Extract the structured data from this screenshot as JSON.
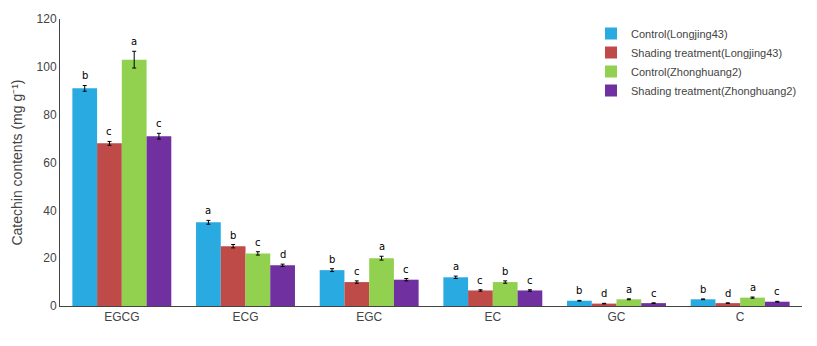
{
  "chart_data": {
    "type": "bar",
    "ylabel": "Catechin contents (mg g⁻¹)",
    "categories": [
      "EGCG",
      "ECG",
      "EGC",
      "EC",
      "GC",
      "C"
    ],
    "series": [
      {
        "name": "Control(Longjing43)",
        "color": "#29ABE2",
        "values": [
          91,
          35,
          15,
          12,
          2.2,
          2.8
        ],
        "errors": [
          1.2,
          0.8,
          0.6,
          0.5,
          0.15,
          0.15
        ],
        "letters": [
          "b",
          "a",
          "b",
          "a",
          "b",
          "b"
        ]
      },
      {
        "name": "Shading treatment(Longjing43)",
        "color": "#BE4B48",
        "values": [
          68,
          25,
          10,
          6.5,
          1.0,
          1.2
        ],
        "errors": [
          0.8,
          0.7,
          0.5,
          0.3,
          0.12,
          0.12
        ],
        "letters": [
          "c",
          "b",
          "c",
          "c",
          "d",
          "d"
        ]
      },
      {
        "name": "Control(Zhonghuang2)",
        "color": "#92D050",
        "values": [
          103,
          22,
          20,
          10,
          2.8,
          3.5
        ],
        "errors": [
          3.5,
          0.7,
          0.8,
          0.5,
          0.2,
          0.25
        ],
        "letters": [
          "a",
          "c",
          "a",
          "b",
          "a",
          "a"
        ]
      },
      {
        "name": "Shading treatment(Zhonghuang2)",
        "color": "#7030A0",
        "values": [
          71,
          17,
          11,
          6.5,
          1.2,
          1.8
        ],
        "errors": [
          1.2,
          0.5,
          0.5,
          0.3,
          0.12,
          0.15
        ],
        "letters": [
          "c",
          "d",
          "c",
          "c",
          "c",
          "c"
        ]
      }
    ],
    "ylim": [
      0,
      120
    ],
    "yticks": [
      0,
      20,
      40,
      60,
      80,
      100,
      120
    ],
    "grid": false,
    "legend": "upper right"
  }
}
